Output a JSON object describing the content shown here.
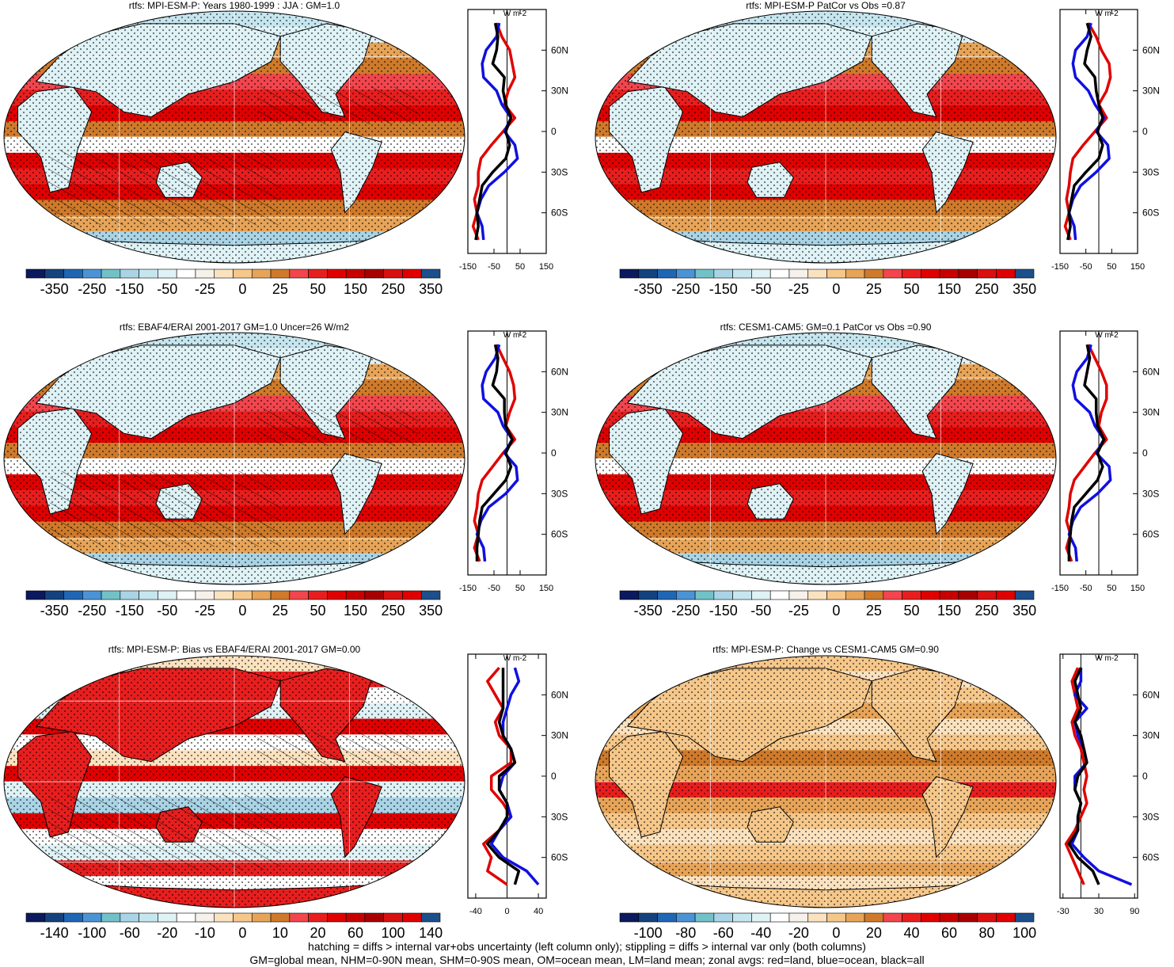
{
  "footer": {
    "line1": "hatching = diffs > internal var+obs uncertainty (left column only); stippling = diffs > internal var only (both columns)",
    "line2": "GM=global mean, NHM=0-90N mean, SHM=0-90S mean, OM=ocean mean, LM=land mean; zonal avgs: red=land, blue=ocean, black=all"
  },
  "colors": {
    "land": "#e00000",
    "ocean": "#1010e0",
    "all": "#000000",
    "map_palette": [
      "#0b1a5e",
      "#14427f",
      "#1f66b5",
      "#4c93d6",
      "#71c2c8",
      "#a9d4e6",
      "#c6e6ef",
      "#dff2f6",
      "#ffffff",
      "#f6f1ea",
      "#fbe2bf",
      "#f5c78a",
      "#e7a458",
      "#cf7a2b",
      "#f2454d",
      "#e81e1e",
      "#e00000",
      "#c80000",
      "#a80000",
      "#d91010",
      "#e00000",
      "#1c4f8b"
    ]
  },
  "chart_data": [
    {
      "type": "map+zonal",
      "title": "rtfs: MPI-ESM-P: Years 1980-1999 : JJA : GM=1.0",
      "colorbar_ticks": [
        "-350",
        "-250",
        "-150",
        "-50",
        "-25",
        "0",
        "25",
        "50",
        "150",
        "250",
        "350"
      ],
      "zonal_unit": "W m-2",
      "zonal_xticks": [
        "-150",
        "-50",
        "50",
        "150"
      ],
      "zonal_xlim": [
        -150,
        150
      ],
      "lat_ticks": [
        "60N",
        "30N",
        "0",
        "30S",
        "60S"
      ],
      "hatching": true,
      "lat": [
        80,
        70,
        60,
        50,
        40,
        30,
        20,
        10,
        0,
        -10,
        -20,
        -30,
        -40,
        -50,
        -60,
        -70,
        -80
      ],
      "series": [
        {
          "name": "land",
          "values": [
            -40,
            -20,
            10,
            20,
            30,
            5,
            -10,
            30,
            -15,
            -60,
            -100,
            -110,
            -110,
            -125,
            -115,
            -130,
            -110
          ]
        },
        {
          "name": "ocean",
          "values": [
            -30,
            -40,
            -80,
            -95,
            -90,
            -40,
            -20,
            15,
            -10,
            30,
            40,
            -10,
            -70,
            -100,
            -115,
            -95,
            -90
          ]
        },
        {
          "name": "all",
          "values": [
            -45,
            -35,
            -40,
            -55,
            -10,
            -15,
            -5,
            15,
            -5,
            10,
            -5,
            -55,
            -95,
            -105,
            -115,
            -110,
            -120
          ]
        }
      ]
    },
    {
      "type": "map+zonal",
      "title": "rtfs: MPI-ESM-P PatCor vs Obs =0.87",
      "colorbar_ticks": [
        "-350",
        "-250",
        "-150",
        "-50",
        "-25",
        "0",
        "25",
        "50",
        "150",
        "250",
        "350"
      ],
      "zonal_unit": "W m-2",
      "zonal_xticks": [
        "-150",
        "-50",
        "50",
        "150"
      ],
      "zonal_xlim": [
        -150,
        150
      ],
      "lat_ticks": [
        "60N",
        "30N",
        "0",
        "30S",
        "60S"
      ],
      "hatching": false,
      "lat": [
        80,
        70,
        60,
        50,
        40,
        30,
        20,
        10,
        0,
        -10,
        -20,
        -30,
        -40,
        -50,
        -60,
        -70,
        -80
      ],
      "series": [
        {
          "name": "land",
          "values": [
            -40,
            -10,
            10,
            40,
            45,
            30,
            0,
            30,
            -15,
            -60,
            -100,
            -110,
            -115,
            -125,
            -115,
            -130,
            -110
          ]
        },
        {
          "name": "ocean",
          "values": [
            -30,
            -45,
            -90,
            -100,
            -90,
            -40,
            -15,
            20,
            -10,
            35,
            40,
            -10,
            -70,
            -100,
            -115,
            -95,
            -90
          ]
        },
        {
          "name": "all",
          "values": [
            -45,
            -30,
            -45,
            -55,
            -15,
            -10,
            0,
            15,
            -5,
            15,
            0,
            -50,
            -95,
            -105,
            -115,
            -110,
            -120
          ]
        }
      ]
    },
    {
      "type": "map+zonal",
      "title": "rtfs: EBAF4/ERAI 2001-2017 GM=1.0 Uncer=26 W/m2",
      "colorbar_ticks": [
        "-350",
        "-250",
        "-150",
        "-50",
        "-25",
        "0",
        "25",
        "50",
        "150",
        "250",
        "350"
      ],
      "zonal_unit": "W m-2",
      "zonal_xticks": [
        "-150",
        "-50",
        "50",
        "150"
      ],
      "zonal_xlim": [
        -150,
        150
      ],
      "lat_ticks": [
        "60N",
        "30N",
        "0",
        "30S",
        "60S"
      ],
      "hatching": true,
      "lat": [
        80,
        70,
        60,
        50,
        40,
        30,
        20,
        10,
        0,
        -10,
        -20,
        -30,
        -40,
        -50,
        -60,
        -70,
        -80
      ],
      "series": [
        {
          "name": "land",
          "values": [
            -40,
            -15,
            10,
            25,
            30,
            10,
            -5,
            30,
            -15,
            -55,
            -95,
            -110,
            -115,
            -125,
            -110,
            -125,
            -105
          ]
        },
        {
          "name": "ocean",
          "values": [
            -30,
            -45,
            -80,
            -95,
            -90,
            -35,
            -15,
            20,
            -10,
            35,
            40,
            -5,
            -70,
            -100,
            -115,
            -90,
            -85
          ]
        },
        {
          "name": "all",
          "values": [
            -45,
            -35,
            -40,
            -55,
            -10,
            -10,
            -5,
            20,
            -5,
            15,
            -5,
            -50,
            -95,
            -105,
            -110,
            -115,
            -115
          ]
        }
      ]
    },
    {
      "type": "map+zonal",
      "title": "rtfs: CESM1-CAM5: GM=0.1 PatCor vs Obs =0.90",
      "colorbar_ticks": [
        "-350",
        "-250",
        "-150",
        "-50",
        "-25",
        "0",
        "25",
        "50",
        "150",
        "250",
        "350"
      ],
      "zonal_unit": "W m-2",
      "zonal_xticks": [
        "-150",
        "-50",
        "50",
        "150"
      ],
      "zonal_xlim": [
        -150,
        150
      ],
      "lat_ticks": [
        "60N",
        "30N",
        "0",
        "30S",
        "60S"
      ],
      "hatching": false,
      "lat": [
        80,
        70,
        60,
        50,
        40,
        30,
        20,
        10,
        0,
        -10,
        -20,
        -30,
        -40,
        -50,
        -60,
        -70,
        -80
      ],
      "series": [
        {
          "name": "land",
          "values": [
            -40,
            -15,
            10,
            30,
            30,
            10,
            0,
            30,
            -15,
            -55,
            -95,
            -110,
            -115,
            -125,
            -110,
            -125,
            -105
          ]
        },
        {
          "name": "ocean",
          "values": [
            -30,
            -45,
            -85,
            -100,
            -90,
            -35,
            -15,
            20,
            -10,
            40,
            45,
            -5,
            -70,
            -100,
            -115,
            -90,
            -85
          ]
        },
        {
          "name": "all",
          "values": [
            -45,
            -35,
            -45,
            -55,
            -10,
            -10,
            -5,
            20,
            -5,
            15,
            -5,
            -50,
            -95,
            -105,
            -110,
            -115,
            -115
          ]
        }
      ]
    },
    {
      "type": "map+zonal",
      "title": "rtfs: MPI-ESM-P: Bias vs EBAF4/ERAI 2001-2017 GM=0.00",
      "colorbar_ticks": [
        "-140",
        "-100",
        "-60",
        "-20",
        "-10",
        "0",
        "10",
        "20",
        "60",
        "100",
        "140"
      ],
      "zonal_unit": "W m-2",
      "zonal_xticks": [
        "-40",
        "0",
        "40"
      ],
      "zonal_xlim": [
        -50,
        50
      ],
      "lat_ticks": [
        "60N",
        "30N",
        "0",
        "30S",
        "60S"
      ],
      "hatching": true,
      "lat": [
        80,
        70,
        60,
        50,
        40,
        30,
        20,
        10,
        0,
        -10,
        -20,
        -30,
        -40,
        -50,
        -60,
        -70,
        -80
      ],
      "series": [
        {
          "name": "land",
          "values": [
            -10,
            -25,
            -15,
            -5,
            -15,
            -10,
            5,
            5,
            -20,
            -20,
            -5,
            5,
            -10,
            -30,
            -20,
            -25,
            0
          ]
        },
        {
          "name": "ocean",
          "values": [
            10,
            15,
            5,
            0,
            -5,
            -5,
            5,
            10,
            -5,
            -10,
            0,
            5,
            -10,
            -20,
            -5,
            25,
            40
          ]
        },
        {
          "name": "all",
          "values": [
            -5,
            -5,
            -5,
            -5,
            -10,
            -5,
            5,
            10,
            -10,
            -10,
            0,
            0,
            -10,
            -25,
            -10,
            15,
            10
          ]
        }
      ]
    },
    {
      "type": "map+zonal",
      "title": "rtfs: MPI-ESM-P: Change vs CESM1-CAM5 GM=0.90",
      "colorbar_ticks": [
        "-100",
        "-80",
        "-60",
        "-40",
        "-20",
        "0",
        "20",
        "40",
        "60",
        "80",
        "100"
      ],
      "zonal_unit": "W m-2",
      "zonal_xticks": [
        "-30",
        "30",
        "90"
      ],
      "zonal_xlim": [
        -35,
        95
      ],
      "lat_ticks": [
        "60N",
        "30N",
        "0",
        "30S",
        "60S"
      ],
      "hatching": false,
      "lat": [
        80,
        70,
        60,
        50,
        40,
        30,
        20,
        10,
        0,
        -10,
        -20,
        -30,
        -40,
        -50,
        -60,
        -70,
        -80
      ],
      "series": [
        {
          "name": "land",
          "values": [
            -5,
            -15,
            -10,
            -5,
            -15,
            -10,
            0,
            5,
            10,
            5,
            10,
            0,
            -10,
            -25,
            -15,
            -5,
            5
          ]
        },
        {
          "name": "ocean",
          "values": [
            0,
            0,
            -10,
            10,
            -10,
            -5,
            5,
            10,
            -10,
            -10,
            0,
            -5,
            -5,
            -15,
            5,
            30,
            85
          ]
        },
        {
          "name": "all",
          "values": [
            0,
            -10,
            -5,
            0,
            -10,
            0,
            5,
            10,
            -5,
            -10,
            0,
            -5,
            -5,
            -20,
            -5,
            20,
            30
          ]
        }
      ]
    }
  ]
}
